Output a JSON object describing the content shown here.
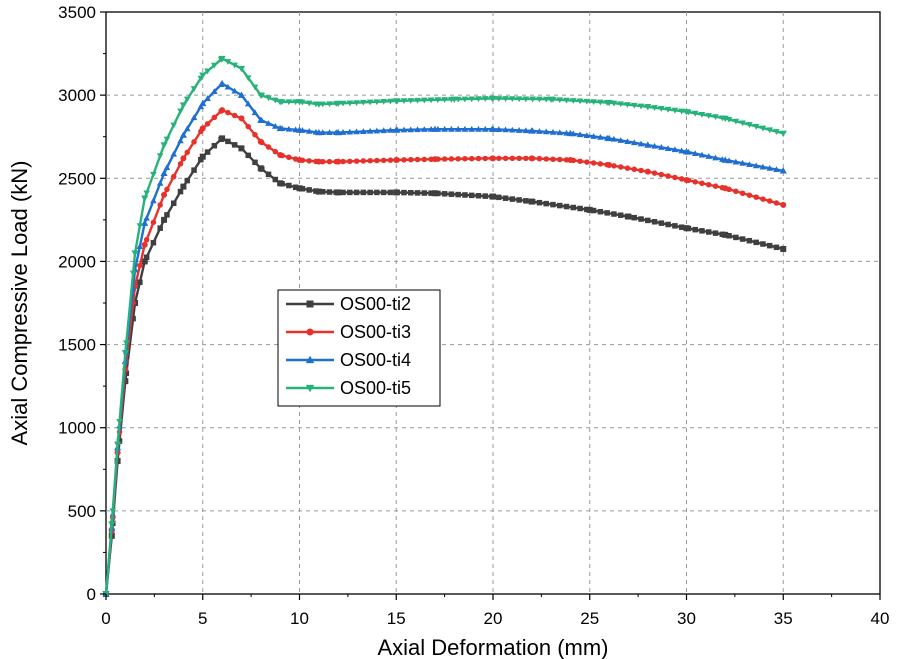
{
  "chart_data": {
    "type": "line",
    "xlabel": "Axial Deformation (mm)",
    "ylabel": "Axial Compressive Load (kN)",
    "xlim": [
      0,
      40
    ],
    "ylim": [
      0,
      3500
    ],
    "xticks": [
      0,
      5,
      10,
      15,
      20,
      25,
      30,
      35,
      40
    ],
    "yticks": [
      0,
      500,
      1000,
      1500,
      2000,
      2500,
      3000,
      3500
    ],
    "grid": true,
    "legend_position": "center-left",
    "series": [
      {
        "name": "OS00-ti2",
        "color": "#3f3f3f",
        "marker": "square",
        "points": [
          [
            0,
            0
          ],
          [
            0.3,
            350
          ],
          [
            0.6,
            800
          ],
          [
            1,
            1280
          ],
          [
            1.5,
            1750
          ],
          [
            2,
            2000
          ],
          [
            3,
            2250
          ],
          [
            4,
            2450
          ],
          [
            5,
            2630
          ],
          [
            6,
            2740
          ],
          [
            7,
            2680
          ],
          [
            8,
            2560
          ],
          [
            9,
            2470
          ],
          [
            10,
            2440
          ],
          [
            11,
            2420
          ],
          [
            12,
            2415
          ],
          [
            15,
            2415
          ],
          [
            17,
            2410
          ],
          [
            20,
            2390
          ],
          [
            22,
            2360
          ],
          [
            25,
            2310
          ],
          [
            27,
            2270
          ],
          [
            30,
            2200
          ],
          [
            32,
            2160
          ],
          [
            35,
            2075
          ]
        ]
      },
      {
        "name": "OS00-ti3",
        "color": "#e8312b",
        "marker": "circle",
        "points": [
          [
            0,
            0
          ],
          [
            0.3,
            380
          ],
          [
            0.6,
            850
          ],
          [
            1,
            1350
          ],
          [
            1.5,
            1850
          ],
          [
            2,
            2100
          ],
          [
            3,
            2400
          ],
          [
            4,
            2620
          ],
          [
            5,
            2800
          ],
          [
            6,
            2910
          ],
          [
            7,
            2860
          ],
          [
            8,
            2720
          ],
          [
            9,
            2640
          ],
          [
            10,
            2610
          ],
          [
            11,
            2600
          ],
          [
            12,
            2600
          ],
          [
            15,
            2610
          ],
          [
            17,
            2615
          ],
          [
            20,
            2620
          ],
          [
            22,
            2620
          ],
          [
            24,
            2610
          ],
          [
            26,
            2580
          ],
          [
            28,
            2540
          ],
          [
            30,
            2490
          ],
          [
            32,
            2440
          ],
          [
            35,
            2340
          ]
        ]
      },
      {
        "name": "OS00-ti4",
        "color": "#1f6fd0",
        "marker": "triangle-up",
        "points": [
          [
            0,
            0
          ],
          [
            0.3,
            400
          ],
          [
            0.6,
            880
          ],
          [
            1,
            1400
          ],
          [
            1.5,
            1950
          ],
          [
            2,
            2230
          ],
          [
            3,
            2530
          ],
          [
            4,
            2760
          ],
          [
            5,
            2950
          ],
          [
            6,
            3070
          ],
          [
            7,
            3000
          ],
          [
            8,
            2850
          ],
          [
            9,
            2800
          ],
          [
            10,
            2790
          ],
          [
            11,
            2775
          ],
          [
            12,
            2775
          ],
          [
            15,
            2790
          ],
          [
            17,
            2795
          ],
          [
            20,
            2795
          ],
          [
            22,
            2785
          ],
          [
            24,
            2770
          ],
          [
            26,
            2740
          ],
          [
            28,
            2700
          ],
          [
            30,
            2660
          ],
          [
            32,
            2610
          ],
          [
            35,
            2545
          ]
        ]
      },
      {
        "name": "OS00-ti5",
        "color": "#27b27a",
        "marker": "triangle-down",
        "points": [
          [
            0,
            0
          ],
          [
            0.3,
            420
          ],
          [
            0.6,
            900
          ],
          [
            1,
            1450
          ],
          [
            1.5,
            2050
          ],
          [
            2,
            2380
          ],
          [
            3,
            2700
          ],
          [
            4,
            2940
          ],
          [
            5,
            3120
          ],
          [
            6,
            3220
          ],
          [
            7,
            3160
          ],
          [
            8,
            3000
          ],
          [
            9,
            2960
          ],
          [
            10,
            2960
          ],
          [
            11,
            2945
          ],
          [
            12,
            2950
          ],
          [
            15,
            2965
          ],
          [
            18,
            2975
          ],
          [
            20,
            2980
          ],
          [
            23,
            2975
          ],
          [
            26,
            2955
          ],
          [
            28,
            2930
          ],
          [
            30,
            2900
          ],
          [
            32,
            2860
          ],
          [
            35,
            2770
          ]
        ]
      }
    ]
  }
}
